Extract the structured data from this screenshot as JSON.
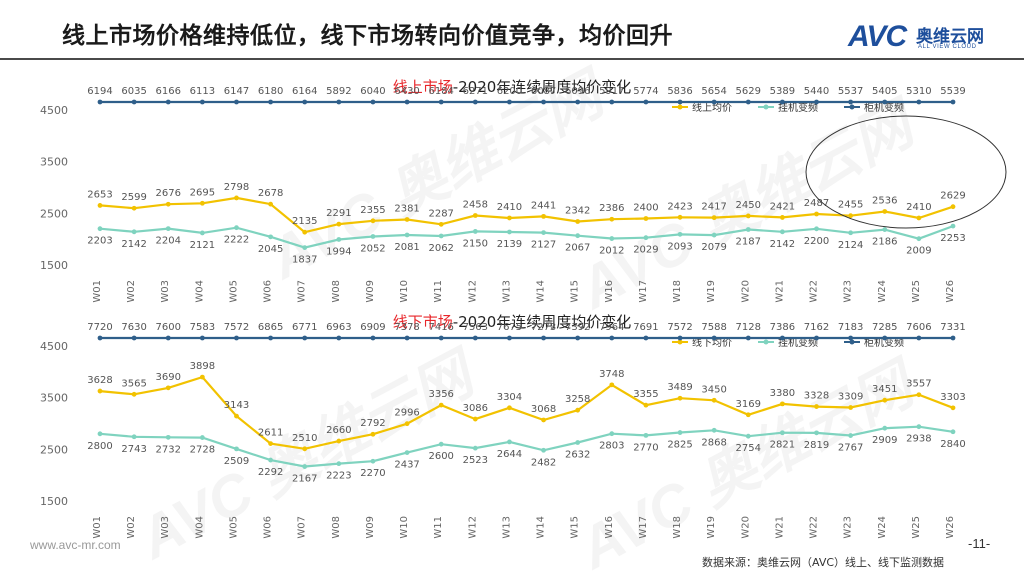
{
  "header": {
    "title": "线上市场价格维持低位，线下市场转向价值竞争，均价回升",
    "logo_mark": "AVC",
    "logo_cn": "奥维云网",
    "logo_en": "ALL VIEW CLOUD"
  },
  "footer": {
    "url": "www.avc-mr.com",
    "page_number": "-11-",
    "source": "数据来源：奥维云网（AVC）线上、线下监测数据"
  },
  "colors": {
    "series_1": "#f2c200",
    "series_2": "#7fd3bf",
    "series_3": "#2f5f8a",
    "title_red": "#e8262a"
  },
  "chart_data": [
    {
      "type": "line",
      "title_highlight": "线上市场",
      "title_rest": "-2020年连续周度均价变化",
      "categories": [
        "W01",
        "W02",
        "W03",
        "W04",
        "W05",
        "W06",
        "W07",
        "W08",
        "W09",
        "W10",
        "W11",
        "W12",
        "W13",
        "W14",
        "W15",
        "W16",
        "W17",
        "W18",
        "W19",
        "W20",
        "W21",
        "W22",
        "W23",
        "W24",
        "W25",
        "W26"
      ],
      "yticks": [
        1500,
        2500,
        3500,
        4500
      ],
      "ylim": [
        1500,
        4500
      ],
      "legend_position": "top-right",
      "series": [
        {
          "name": "线上均价",
          "color_key": "series_1",
          "label_position": "above",
          "values": [
            2653,
            2599,
            2676,
            2695,
            2798,
            2678,
            2135,
            2291,
            2355,
            2381,
            2287,
            2458,
            2410,
            2441,
            2342,
            2386,
            2400,
            2423,
            2417,
            2450,
            2421,
            2487,
            2455,
            2536,
            2410,
            2629
          ]
        },
        {
          "name": "挂机变频",
          "color_key": "series_2",
          "label_position": "below",
          "values": [
            2203,
            2142,
            2204,
            2121,
            2222,
            2045,
            1837,
            1994,
            2052,
            2081,
            2062,
            2150,
            2139,
            2127,
            2067,
            2012,
            2029,
            2093,
            2079,
            2187,
            2142,
            2200,
            2124,
            2186,
            2009,
            2253
          ]
        },
        {
          "name": "柜机变频",
          "color_key": "series_3",
          "label_position": "above",
          "values": [
            6194,
            6035,
            6166,
            6113,
            6147,
            6180,
            6164,
            5892,
            6040,
            6430,
            6184,
            6271,
            6200,
            6087,
            6096,
            5917,
            5774,
            5836,
            5654,
            5629,
            5389,
            5440,
            5537,
            5405,
            5310,
            5539
          ]
        }
      ]
    },
    {
      "type": "line",
      "title_highlight": "线下市场",
      "title_rest": "-2020年连续周度均价变化",
      "categories": [
        "W01",
        "W02",
        "W03",
        "W04",
        "W05",
        "W06",
        "W07",
        "W08",
        "W09",
        "W10",
        "W11",
        "W12",
        "W13",
        "W14",
        "W15",
        "W16",
        "W17",
        "W18",
        "W19",
        "W20",
        "W21",
        "W22",
        "W23",
        "W24",
        "W25",
        "W26"
      ],
      "yticks": [
        1500,
        2500,
        3500,
        4500
      ],
      "ylim": [
        1500,
        4500
      ],
      "legend_position": "top-right",
      "series": [
        {
          "name": "线下均价",
          "color_key": "series_1",
          "label_position": "above",
          "values": [
            3628,
            3565,
            3690,
            3898,
            3143,
            2611,
            2510,
            2660,
            2792,
            2996,
            3356,
            3086,
            3304,
            3068,
            3258,
            3748,
            3355,
            3489,
            3450,
            3169,
            3380,
            3328,
            3309,
            3451,
            3557,
            3303
          ]
        },
        {
          "name": "挂机变频",
          "color_key": "series_2",
          "label_position": "below",
          "values": [
            2800,
            2743,
            2732,
            2728,
            2509,
            2292,
            2167,
            2223,
            2270,
            2437,
            2600,
            2523,
            2644,
            2482,
            2632,
            2803,
            2770,
            2825,
            2868,
            2754,
            2821,
            2819,
            2767,
            2909,
            2938,
            2840
          ]
        },
        {
          "name": "柜机变频",
          "color_key": "series_3",
          "label_position": "above",
          "values": [
            7720,
            7630,
            7600,
            7583,
            7572,
            6865,
            6771,
            6963,
            6909,
            7378,
            7416,
            7563,
            7675,
            7273,
            7392,
            7964,
            7691,
            7572,
            7588,
            7128,
            7386,
            7162,
            7183,
            7285,
            7606,
            7331
          ]
        }
      ]
    }
  ]
}
